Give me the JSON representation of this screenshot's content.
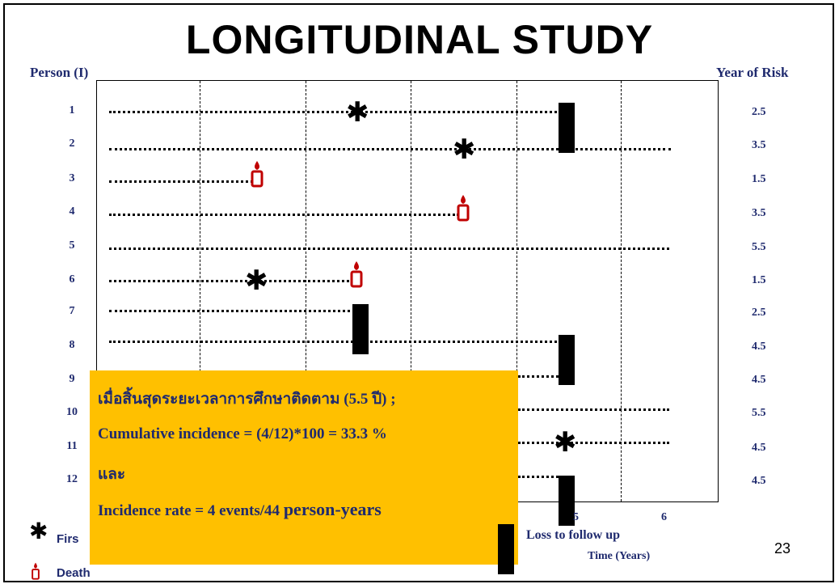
{
  "title": "LONGITUDINAL STUDY",
  "header": {
    "person_label": "Person (I)",
    "risk_label": "Year of Risk"
  },
  "rows": [
    {
      "person": "1",
      "risk": "2.5"
    },
    {
      "person": "2",
      "risk": "3.5"
    },
    {
      "person": "3",
      "risk": "1.5"
    },
    {
      "person": "4",
      "risk": "3.5"
    },
    {
      "person": "5",
      "risk": "5.5"
    },
    {
      "person": "6",
      "risk": "1.5"
    },
    {
      "person": "7",
      "risk": "2.5"
    },
    {
      "person": "8",
      "risk": "4.5"
    },
    {
      "person": "9",
      "risk": "4.5"
    },
    {
      "person": "10",
      "risk": "5.5"
    },
    {
      "person": "11",
      "risk": "4.5"
    },
    {
      "person": "12",
      "risk": "4.5"
    }
  ],
  "axis": {
    "tick_5": "5",
    "tick_6": "6",
    "xlabel": "Time (Years)"
  },
  "legend": {
    "first_prefix": "Firs",
    "death": "Death",
    "loss": "Loss to follow up",
    "star_icon": "asterisk-icon",
    "death_icon": "candle-icon"
  },
  "callout": {
    "line1": "เมื่อสิ้นสุดระยะเวลาการศึกษาติดตาม (5.5 ปี) ;",
    "line2": "Cumulative incidence = (4/12)*100 = 33.3 %",
    "line3": "และ",
    "line4_prefix": "Incidence rate = 4 events/44 ",
    "line4_suffix": "person-years",
    "background": "#ffc000"
  },
  "slide_number": "23",
  "colors": {
    "label": "#1f2a6e",
    "death": "#c00000",
    "marker": "#000000"
  }
}
